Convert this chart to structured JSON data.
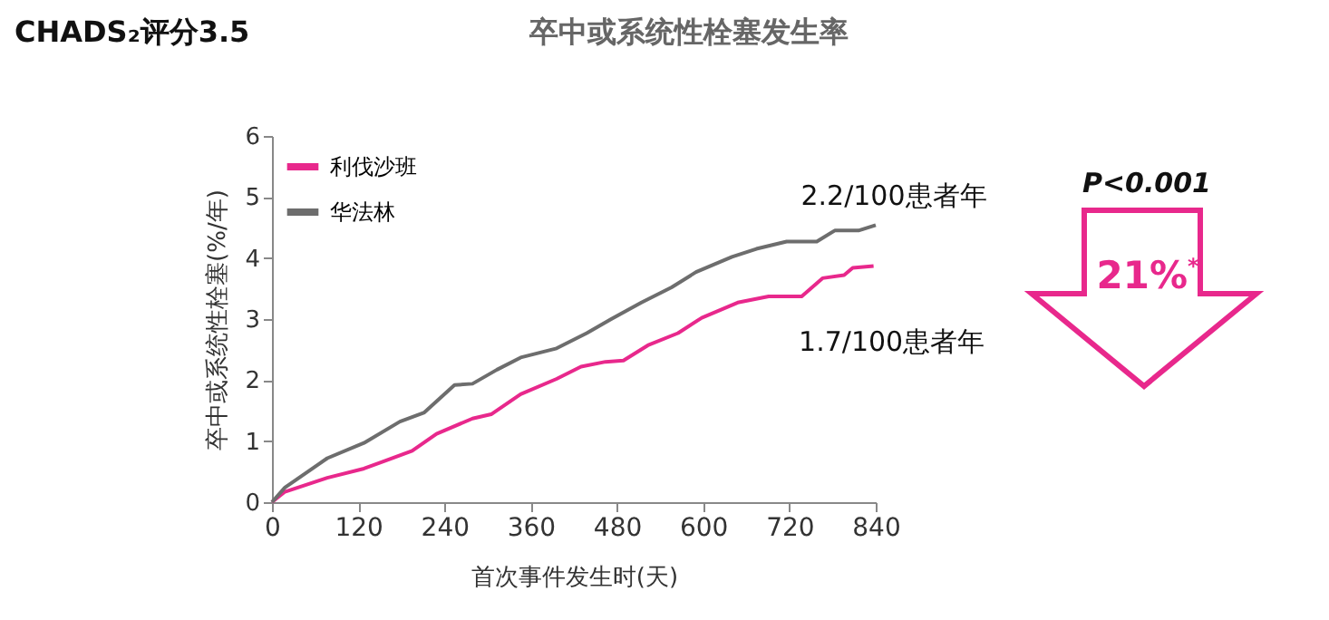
{
  "chart_data": {
    "type": "line",
    "title": "卒中或系统性栓塞发生率",
    "subtitle": "CHADS₂评分3.5",
    "xlabel": "首次事件发生时(天)",
    "ylabel": "卒中或系统性栓塞(%/年)",
    "xlim": [
      0,
      840
    ],
    "xticks": [
      0,
      120,
      240,
      360,
      480,
      600,
      720,
      840
    ],
    "ylim": [
      0,
      6
    ],
    "yticks": [
      0,
      1,
      2,
      3,
      4,
      5,
      6
    ],
    "grid": false,
    "legend": "top left",
    "marker": "none",
    "line_style": "solid",
    "series": [
      {
        "name": "利伐沙班",
        "color": "#e8288c",
        "x": [
          0,
          18,
          77,
          128,
          195,
          229,
          279,
          305,
          346,
          396,
          430,
          464,
          489,
          523,
          565,
          598,
          648,
          691,
          737,
          766,
          796,
          808,
          837
        ],
        "values": [
          0,
          0.17,
          0.4,
          0.55,
          0.84,
          1.12,
          1.37,
          1.44,
          1.77,
          2.02,
          2.22,
          2.3,
          2.32,
          2.57,
          2.77,
          3.02,
          3.27,
          3.37,
          3.37,
          3.67,
          3.72,
          3.84,
          3.87
        ]
      },
      {
        "name": "华法林",
        "color": "#6d6d6d",
        "x": [
          0,
          18,
          77,
          128,
          178,
          212,
          254,
          279,
          313,
          346,
          396,
          438,
          472,
          514,
          556,
          590,
          640,
          674,
          716,
          758,
          783,
          816,
          840
        ],
        "values": [
          0,
          0.24,
          0.72,
          0.97,
          1.32,
          1.47,
          1.92,
          1.94,
          2.17,
          2.37,
          2.52,
          2.77,
          3.0,
          3.27,
          3.52,
          3.77,
          4.02,
          4.15,
          4.27,
          4.27,
          4.45,
          4.45,
          4.54
        ]
      }
    ],
    "annotations": [
      {
        "text": "2.2/100患者年",
        "x": 840,
        "y": 4.54
      },
      {
        "text": "1.7/100患者年",
        "x": 837,
        "y": 3.87
      },
      "P<0.001",
      "21%$^{*}$"
    ]
  }
}
